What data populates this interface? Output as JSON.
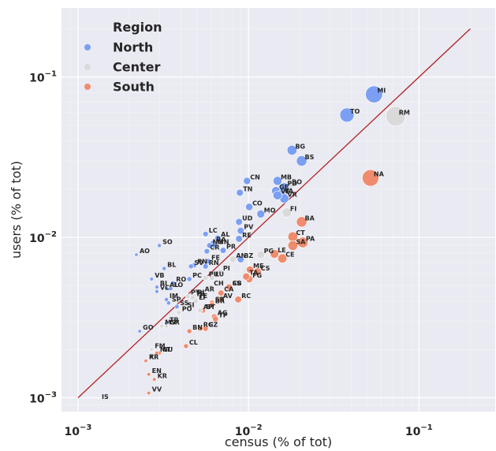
{
  "chart_data": {
    "type": "scatter",
    "xlabel": "census (% of tot)",
    "ylabel": "users (% of tot)",
    "x_scale": "log",
    "y_scale": "log",
    "xlim": [
      0.0008,
      0.28
    ],
    "ylim": [
      0.00082,
      0.27
    ],
    "x_ticks": [
      0.001,
      0.01,
      0.1
    ],
    "x_tick_labels": [
      {
        "base": "10",
        "exp": "−3"
      },
      {
        "base": "10",
        "exp": "−2"
      },
      {
        "base": "10",
        "exp": "−1"
      }
    ],
    "y_ticks": [
      0.001,
      0.01,
      0.1
    ],
    "y_tick_labels": [
      {
        "base": "10",
        "exp": "−3"
      },
      {
        "base": "10",
        "exp": "−2"
      },
      {
        "base": "10",
        "exp": "−1"
      }
    ],
    "grid": true,
    "legend": {
      "title": "Region",
      "placement": "top-left",
      "entries": [
        {
          "name": "North",
          "color": "#7b9ff2"
        },
        {
          "name": "Center",
          "color": "#dadada"
        },
        {
          "name": "South",
          "color": "#f08c6e"
        }
      ]
    },
    "reference_line": {
      "x": [
        0.001,
        0.2
      ],
      "y": [
        0.001,
        0.2
      ],
      "color": "#b22222"
    },
    "colors": {
      "North": "#7b9ff2",
      "Center": "#dadada",
      "South": "#f08c6e",
      "background": "#eaeaf2",
      "grid": "#ffffff"
    },
    "points": [
      {
        "label": "MI",
        "x": 0.0545,
        "y": 0.078,
        "region": "North"
      },
      {
        "label": "TO",
        "x": 0.0378,
        "y": 0.058,
        "region": "North"
      },
      {
        "label": "RM",
        "x": 0.073,
        "y": 0.057,
        "region": "Center"
      },
      {
        "label": "NA",
        "x": 0.052,
        "y": 0.0235,
        "region": "South"
      },
      {
        "label": "BG",
        "x": 0.018,
        "y": 0.035,
        "region": "North"
      },
      {
        "label": "BS",
        "x": 0.0205,
        "y": 0.03,
        "region": "North"
      },
      {
        "label": "CN",
        "x": 0.0098,
        "y": 0.0225,
        "region": "North"
      },
      {
        "label": "TN",
        "x": 0.0089,
        "y": 0.019,
        "region": "North"
      },
      {
        "label": "MB",
        "x": 0.0148,
        "y": 0.0225,
        "region": "North"
      },
      {
        "label": "PD",
        "x": 0.0162,
        "y": 0.0205,
        "region": "North"
      },
      {
        "label": "BO",
        "x": 0.0172,
        "y": 0.021,
        "region": "Center"
      },
      {
        "label": "GE",
        "x": 0.0145,
        "y": 0.0195,
        "region": "North"
      },
      {
        "label": "VA",
        "x": 0.0155,
        "y": 0.0185,
        "region": "North"
      },
      {
        "label": "VE",
        "x": 0.0148,
        "y": 0.0183,
        "region": "North"
      },
      {
        "label": "VR",
        "x": 0.0162,
        "y": 0.0175,
        "region": "North"
      },
      {
        "label": "CO",
        "x": 0.0101,
        "y": 0.0155,
        "region": "North"
      },
      {
        "label": "MO",
        "x": 0.0118,
        "y": 0.014,
        "region": "North"
      },
      {
        "label": "FI",
        "x": 0.0168,
        "y": 0.0143,
        "region": "Center"
      },
      {
        "label": "UD",
        "x": 0.0088,
        "y": 0.0125,
        "region": "North"
      },
      {
        "label": "PV",
        "x": 0.009,
        "y": 0.011,
        "region": "North"
      },
      {
        "label": "BA",
        "x": 0.0205,
        "y": 0.0125,
        "region": "South"
      },
      {
        "label": "LC",
        "x": 0.0056,
        "y": 0.0105,
        "region": "North"
      },
      {
        "label": "AL",
        "x": 0.0066,
        "y": 0.0099,
        "region": "North"
      },
      {
        "label": "RE",
        "x": 0.0088,
        "y": 0.0098,
        "region": "North"
      },
      {
        "label": "CT",
        "x": 0.0182,
        "y": 0.0101,
        "region": "South"
      },
      {
        "label": "PA",
        "x": 0.0208,
        "y": 0.0093,
        "region": "South"
      },
      {
        "label": "SA",
        "x": 0.0182,
        "y": 0.0089,
        "region": "South"
      },
      {
        "label": "RA",
        "x": 0.0062,
        "y": 0.0092,
        "region": "North"
      },
      {
        "label": "NO",
        "x": 0.0059,
        "y": 0.0089,
        "region": "North"
      },
      {
        "label": "MN",
        "x": 0.0063,
        "y": 0.0089,
        "region": "North"
      },
      {
        "label": "PR",
        "x": 0.0071,
        "y": 0.0083,
        "region": "North"
      },
      {
        "label": "CR",
        "x": 0.0057,
        "y": 0.0082,
        "region": "North"
      },
      {
        "label": "AO",
        "x": 0.0022,
        "y": 0.0078,
        "region": "North"
      },
      {
        "label": "SO",
        "x": 0.003,
        "y": 0.0089,
        "region": "North"
      },
      {
        "label": "PG",
        "x": 0.0118,
        "y": 0.0078,
        "region": "Center"
      },
      {
        "label": "LE",
        "x": 0.0142,
        "y": 0.0079,
        "region": "South"
      },
      {
        "label": "CE",
        "x": 0.0158,
        "y": 0.0074,
        "region": "South"
      },
      {
        "label": "FE",
        "x": 0.0058,
        "y": 0.0071,
        "region": "North"
      },
      {
        "label": "AN",
        "x": 0.0081,
        "y": 0.0073,
        "region": "Center"
      },
      {
        "label": "BZ",
        "x": 0.009,
        "y": 0.0073,
        "region": "North"
      },
      {
        "label": "SV",
        "x": 0.0046,
        "y": 0.0066,
        "region": "North"
      },
      {
        "label": "PN",
        "x": 0.0048,
        "y": 0.0067,
        "region": "North"
      },
      {
        "label": "RN",
        "x": 0.0056,
        "y": 0.0066,
        "region": "North"
      },
      {
        "label": "BL",
        "x": 0.0032,
        "y": 0.0064,
        "region": "North"
      },
      {
        "label": "ME",
        "x": 0.0102,
        "y": 0.0063,
        "region": "South"
      },
      {
        "label": "CS",
        "x": 0.0113,
        "y": 0.0061,
        "region": "South"
      },
      {
        "label": "TA",
        "x": 0.0097,
        "y": 0.0057,
        "region": "South"
      },
      {
        "label": "FG",
        "x": 0.0101,
        "y": 0.0055,
        "region": "South"
      },
      {
        "label": "PI",
        "x": 0.0068,
        "y": 0.0061,
        "region": "Center"
      },
      {
        "label": "PU",
        "x": 0.0056,
        "y": 0.0056,
        "region": "Center"
      },
      {
        "label": "LU",
        "x": 0.0061,
        "y": 0.0056,
        "region": "Center"
      },
      {
        "label": "PC",
        "x": 0.0045,
        "y": 0.0055,
        "region": "North"
      },
      {
        "label": "VB",
        "x": 0.0027,
        "y": 0.0055,
        "region": "North"
      },
      {
        "label": "RO",
        "x": 0.0036,
        "y": 0.0052,
        "region": "North"
      },
      {
        "label": "BI",
        "x": 0.0029,
        "y": 0.0049,
        "region": "North"
      },
      {
        "label": "AL",
        "x": 0.0033,
        "y": 0.0048,
        "region": "North"
      },
      {
        "label": "LO",
        "x": 0.0035,
        "y": 0.0048,
        "region": "North"
      },
      {
        "label": "VC",
        "x": 0.0029,
        "y": 0.0046,
        "region": "North"
      },
      {
        "label": "CH",
        "x": 0.006,
        "y": 0.0049,
        "region": "Center"
      },
      {
        "label": "SS",
        "x": 0.0077,
        "y": 0.0049,
        "region": "South"
      },
      {
        "label": "CB",
        "x": 0.0077,
        "y": 0.0049,
        "region": "South"
      },
      {
        "label": "AR",
        "x": 0.0053,
        "y": 0.0045,
        "region": "Center"
      },
      {
        "label": "CA",
        "x": 0.0069,
        "y": 0.0045,
        "region": "South"
      },
      {
        "label": "RI",
        "x": 0.0048,
        "y": 0.0043,
        "region": "Center"
      },
      {
        "label": "PT",
        "x": 0.0044,
        "y": 0.0043,
        "region": "Center"
      },
      {
        "label": "TR",
        "x": 0.0047,
        "y": 0.0042,
        "region": "Center"
      },
      {
        "label": "TE",
        "x": 0.0049,
        "y": 0.0041,
        "region": "Center"
      },
      {
        "label": "LT",
        "x": 0.0049,
        "y": 0.004,
        "region": "Center"
      },
      {
        "label": "AV",
        "x": 0.0068,
        "y": 0.0041,
        "region": "South"
      },
      {
        "label": "RC",
        "x": 0.0087,
        "y": 0.0041,
        "region": "South"
      },
      {
        "label": "IM",
        "x": 0.0033,
        "y": 0.0041,
        "region": "North"
      },
      {
        "label": "SP",
        "x": 0.0034,
        "y": 0.0039,
        "region": "North"
      },
      {
        "label": "SR",
        "x": 0.0061,
        "y": 0.0039,
        "region": "South"
      },
      {
        "label": "BR",
        "x": 0.0061,
        "y": 0.0038,
        "region": "South"
      },
      {
        "label": "SS",
        "x": 0.0038,
        "y": 0.0037,
        "region": "North"
      },
      {
        "label": "SI",
        "x": 0.0042,
        "y": 0.0036,
        "region": "Center"
      },
      {
        "label": "AP",
        "x": 0.0052,
        "y": 0.0035,
        "region": "Center"
      },
      {
        "label": "BT",
        "x": 0.0054,
        "y": 0.0035,
        "region": "South"
      },
      {
        "label": "PO",
        "x": 0.0039,
        "y": 0.0034,
        "region": "Center"
      },
      {
        "label": "AG",
        "x": 0.0063,
        "y": 0.0032,
        "region": "South"
      },
      {
        "label": "TP",
        "x": 0.0064,
        "y": 0.0031,
        "region": "South"
      },
      {
        "label": "TR",
        "x": 0.0033,
        "y": 0.0029,
        "region": "North"
      },
      {
        "label": "MS",
        "x": 0.0031,
        "y": 0.0028,
        "region": "Center"
      },
      {
        "label": "GR",
        "x": 0.0033,
        "y": 0.0028,
        "region": "Center"
      },
      {
        "label": "RG",
        "x": 0.0052,
        "y": 0.0027,
        "region": "South"
      },
      {
        "label": "CZ",
        "x": 0.0056,
        "y": 0.0027,
        "region": "South"
      },
      {
        "label": "BN",
        "x": 0.0045,
        "y": 0.0026,
        "region": "South"
      },
      {
        "label": "GO",
        "x": 0.0023,
        "y": 0.0026,
        "region": "North"
      },
      {
        "label": "CL",
        "x": 0.0043,
        "y": 0.0021,
        "region": "South"
      },
      {
        "label": "FM",
        "x": 0.0027,
        "y": 0.002,
        "region": "Center"
      },
      {
        "label": "MT",
        "x": 0.0029,
        "y": 0.0019,
        "region": "South"
      },
      {
        "label": "NU",
        "x": 0.003,
        "y": 0.0019,
        "region": "South"
      },
      {
        "label": "RI",
        "x": 0.0025,
        "y": 0.0017,
        "region": "Center"
      },
      {
        "label": "KR",
        "x": 0.0025,
        "y": 0.0017,
        "region": "South"
      },
      {
        "label": "EN",
        "x": 0.0026,
        "y": 0.0014,
        "region": "South"
      },
      {
        "label": "KR",
        "x": 0.0028,
        "y": 0.0013,
        "region": "South"
      },
      {
        "label": "VV",
        "x": 0.0026,
        "y": 0.00107,
        "region": "South"
      },
      {
        "label": "IS",
        "x": 0.00132,
        "y": 0.00096,
        "region": "Center"
      }
    ]
  }
}
